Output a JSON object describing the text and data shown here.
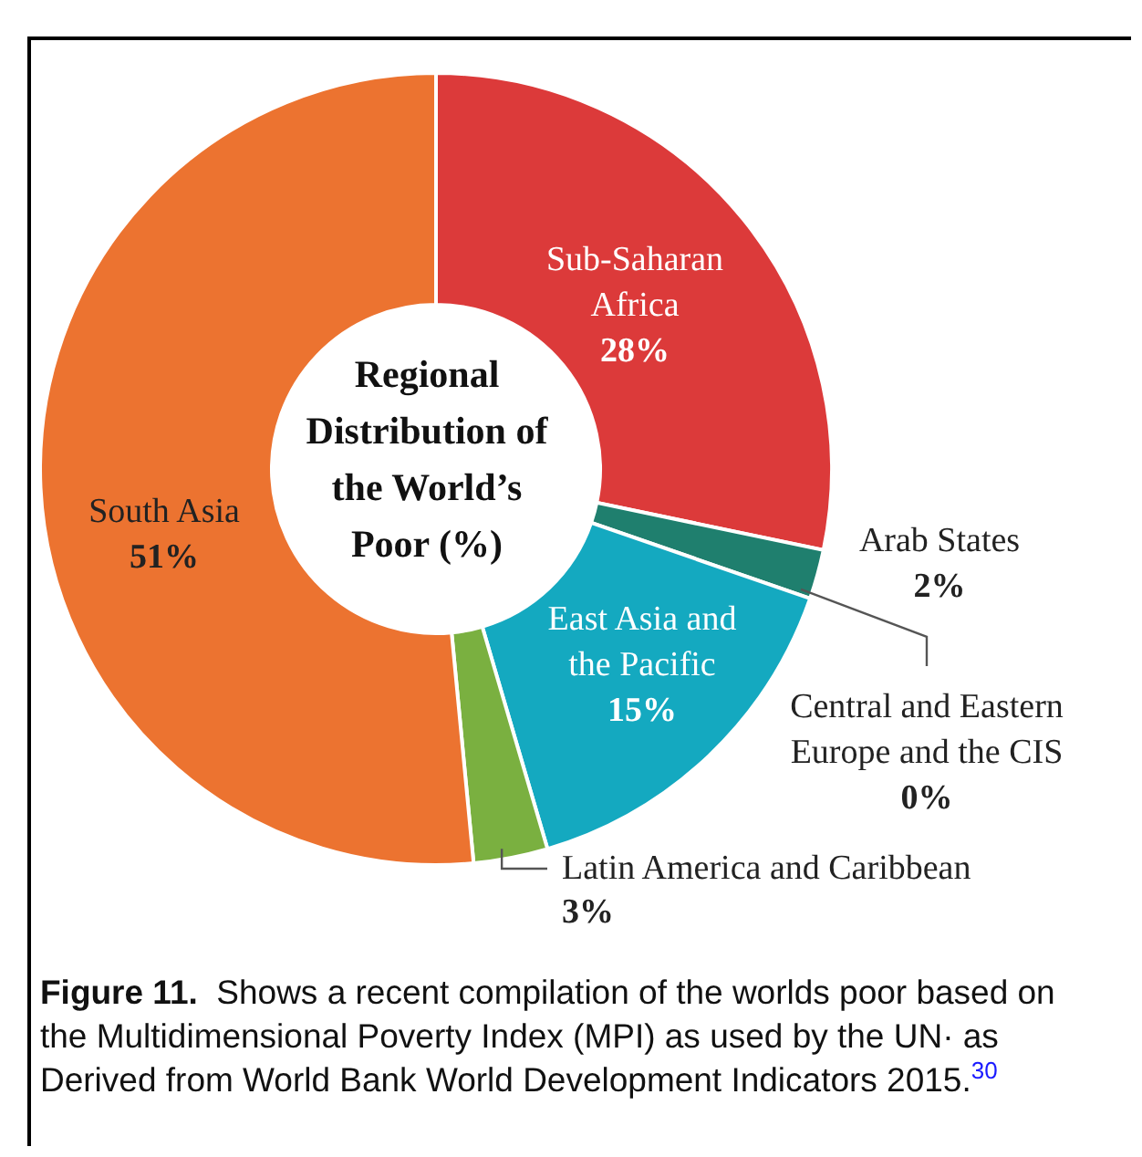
{
  "chart_data": {
    "type": "donut",
    "title": "Regional Distribution of the World’s Poor (%)",
    "categories": [
      "Sub-Saharan Africa",
      "Arab States",
      "Central and Eastern Europe and the CIS",
      "East Asia and the Pacific",
      "Latin America and Caribbean",
      "South Asia"
    ],
    "values": [
      28,
      2,
      0,
      15,
      3,
      51
    ],
    "value_labels": [
      "28%",
      "2%",
      "0%",
      "15%",
      "3%",
      "51%"
    ],
    "colors": [
      "#dc3a3a",
      "#1f7f6e",
      "#5b6d8c",
      "#14a9c0",
      "#7ab040",
      "#ec7330"
    ],
    "legend": false,
    "annotations": [
      "Figure 11.  Shows a recent compilation of the worlds poor based on the Multidimensional Poverty Index (MPI) as used by the UN· as Derived from World Bank World Development Indicators 2015.$^{30}$"
    ]
  }
}
